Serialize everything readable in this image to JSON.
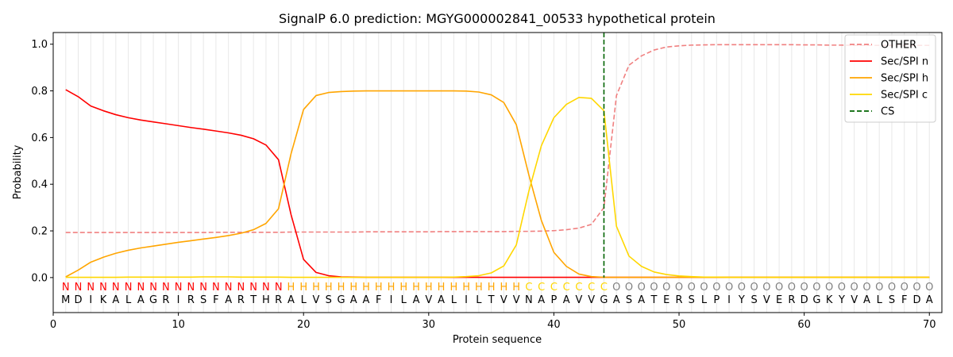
{
  "chart_data": {
    "type": "line",
    "title": "SignalP 6.0 prediction: MGYG000002841_00533 hypothetical protein",
    "xlabel": "Protein sequence",
    "ylabel": "Probability",
    "xlim": [
      0,
      71
    ],
    "ylim": [
      -0.15,
      1.05
    ],
    "xticks": [
      0,
      10,
      20,
      30,
      40,
      50,
      60,
      70
    ],
    "yticks": [
      0.0,
      0.2,
      0.4,
      0.6,
      0.8,
      1.0
    ],
    "ytick_labels": [
      "0.0",
      "0.2",
      "0.4",
      "0.6",
      "0.8",
      "1.0"
    ],
    "grid": "vertical lines at each residue",
    "legend_position": "top-right",
    "x": [
      1,
      2,
      3,
      4,
      5,
      6,
      7,
      8,
      9,
      10,
      11,
      12,
      13,
      14,
      15,
      16,
      17,
      18,
      19,
      20,
      21,
      22,
      23,
      24,
      25,
      26,
      27,
      28,
      29,
      30,
      31,
      32,
      33,
      34,
      35,
      36,
      37,
      38,
      39,
      40,
      41,
      42,
      43,
      44,
      45,
      46,
      47,
      48,
      49,
      50,
      51,
      52,
      53,
      54,
      55,
      56,
      57,
      58,
      59,
      60,
      61,
      62,
      63,
      64,
      65,
      66,
      67,
      68,
      69,
      70
    ],
    "series": [
      {
        "name": "OTHER",
        "color": "#f08080",
        "style": "dashed",
        "values": [
          0.193,
          0.193,
          0.193,
          0.193,
          0.193,
          0.193,
          0.193,
          0.193,
          0.193,
          0.193,
          0.193,
          0.193,
          0.194,
          0.194,
          0.194,
          0.194,
          0.194,
          0.194,
          0.195,
          0.195,
          0.195,
          0.195,
          0.195,
          0.195,
          0.196,
          0.196,
          0.196,
          0.196,
          0.196,
          0.196,
          0.197,
          0.197,
          0.197,
          0.197,
          0.197,
          0.197,
          0.198,
          0.198,
          0.199,
          0.201,
          0.205,
          0.212,
          0.228,
          0.3,
          0.78,
          0.91,
          0.95,
          0.975,
          0.988,
          0.993,
          0.996,
          0.997,
          0.998,
          0.998,
          0.998,
          0.998,
          0.998,
          0.998,
          0.998,
          0.997,
          0.997,
          0.996,
          0.996,
          0.995,
          0.995,
          0.995,
          0.995,
          0.995,
          0.995,
          0.995
        ]
      },
      {
        "name": "Sec/SPI n",
        "color": "#ff0000",
        "style": "solid",
        "values": [
          0.805,
          0.775,
          0.735,
          0.715,
          0.698,
          0.685,
          0.675,
          0.667,
          0.659,
          0.651,
          0.643,
          0.636,
          0.628,
          0.62,
          0.61,
          0.595,
          0.568,
          0.505,
          0.27,
          0.078,
          0.022,
          0.008,
          0.003,
          0.002,
          0.001,
          0.001,
          0.001,
          0.001,
          0.001,
          0.001,
          0.001,
          0.001,
          0.001,
          0.001,
          0.001,
          0.001,
          0.001,
          0.001,
          0.001,
          0.001,
          0.001,
          0.001,
          0.001,
          0.001,
          0.001,
          0.001,
          0.001,
          0.001,
          0.001,
          0.001,
          0.001,
          0.001,
          0.001,
          0.001,
          0.001,
          0.001,
          0.001,
          0.001,
          0.001,
          0.001,
          0.001,
          0.001,
          0.001,
          0.001,
          0.001,
          0.001,
          0.001,
          0.001,
          0.001,
          0.001
        ]
      },
      {
        "name": "Sec/SPI h",
        "color": "#ffa500",
        "style": "solid",
        "values": [
          0.003,
          0.032,
          0.066,
          0.087,
          0.104,
          0.117,
          0.127,
          0.135,
          0.143,
          0.151,
          0.158,
          0.165,
          0.172,
          0.18,
          0.19,
          0.205,
          0.232,
          0.295,
          0.53,
          0.72,
          0.78,
          0.793,
          0.797,
          0.799,
          0.8,
          0.8,
          0.8,
          0.8,
          0.8,
          0.8,
          0.8,
          0.8,
          0.799,
          0.795,
          0.783,
          0.75,
          0.655,
          0.44,
          0.245,
          0.108,
          0.048,
          0.015,
          0.004,
          0.001,
          0.001,
          0.001,
          0.001,
          0.001,
          0.001,
          0.001,
          0.001,
          0.001,
          0.001,
          0.001,
          0.001,
          0.001,
          0.001,
          0.001,
          0.001,
          0.001,
          0.001,
          0.001,
          0.001,
          0.001,
          0.001,
          0.001,
          0.001,
          0.001,
          0.001,
          0.001
        ]
      },
      {
        "name": "Sec/SPI c",
        "color": "#ffd700",
        "style": "solid",
        "values": [
          0.001,
          0.001,
          0.001,
          0.001,
          0.001,
          0.002,
          0.002,
          0.002,
          0.002,
          0.002,
          0.002,
          0.003,
          0.003,
          0.003,
          0.002,
          0.002,
          0.002,
          0.002,
          0.001,
          0.001,
          0.001,
          0.001,
          0.001,
          0.001,
          0.001,
          0.001,
          0.001,
          0.001,
          0.001,
          0.001,
          0.001,
          0.002,
          0.004,
          0.008,
          0.02,
          0.05,
          0.14,
          0.37,
          0.565,
          0.685,
          0.742,
          0.772,
          0.768,
          0.715,
          0.22,
          0.092,
          0.048,
          0.024,
          0.013,
          0.007,
          0.004,
          0.002,
          0.002,
          0.001,
          0.001,
          0.001,
          0.001,
          0.001,
          0.001,
          0.001,
          0.001,
          0.001,
          0.001,
          0.001,
          0.001,
          0.001,
          0.001,
          0.001,
          0.001,
          0.001
        ]
      }
    ],
    "cs_line": {
      "name": "CS",
      "x": 44,
      "color": "#006400",
      "style": "dashed"
    },
    "annotation_colors": {
      "N": "#ff0000",
      "H": "#ffa500",
      "C": "#ffd700",
      "O": "#808080"
    },
    "annotations": [
      "N",
      "N",
      "N",
      "N",
      "N",
      "N",
      "N",
      "N",
      "N",
      "N",
      "N",
      "N",
      "N",
      "N",
      "N",
      "N",
      "N",
      "N",
      "H",
      "H",
      "H",
      "H",
      "H",
      "H",
      "H",
      "H",
      "H",
      "H",
      "H",
      "H",
      "H",
      "H",
      "H",
      "H",
      "H",
      "H",
      "H",
      "C",
      "C",
      "C",
      "C",
      "C",
      "C",
      "C",
      "O",
      "O",
      "O",
      "O",
      "O",
      "O",
      "O",
      "O",
      "O",
      "O",
      "O",
      "O",
      "O",
      "O",
      "O",
      "O",
      "O",
      "O",
      "O",
      "O",
      "O",
      "O",
      "O",
      "O",
      "O",
      "O"
    ],
    "sequence": [
      "M",
      "D",
      "I",
      "K",
      "A",
      "L",
      "A",
      "G",
      "R",
      "I",
      "R",
      "S",
      "F",
      "A",
      "R",
      "T",
      "H",
      "R",
      "A",
      "L",
      "V",
      "S",
      "G",
      "A",
      "A",
      "F",
      "I",
      "L",
      "A",
      "V",
      "A",
      "L",
      "I",
      "L",
      "T",
      "V",
      "V",
      "N",
      "A",
      "P",
      "A",
      "V",
      "V",
      "G",
      "A",
      "S",
      "A",
      "T",
      "E",
      "R",
      "S",
      "L",
      "P",
      "I",
      "Y",
      "S",
      "V",
      "E",
      "R",
      "D",
      "G",
      "K",
      "Y",
      "V",
      "A",
      "L",
      "S",
      "F",
      "D",
      "A"
    ]
  }
}
